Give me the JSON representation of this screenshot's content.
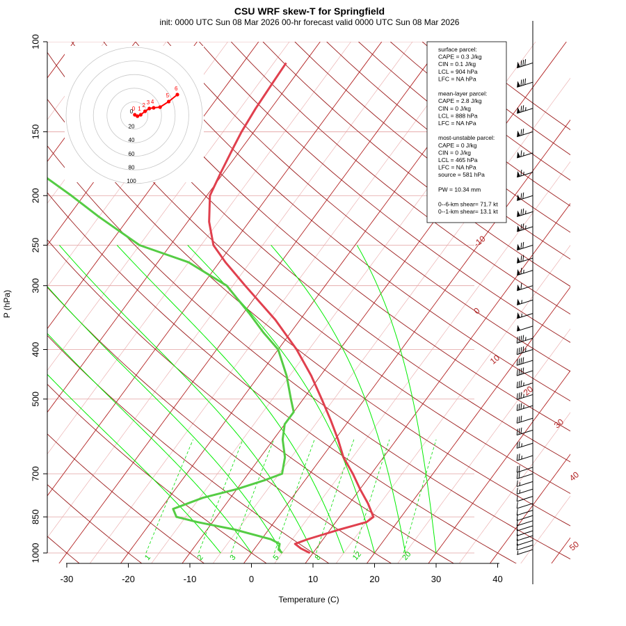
{
  "chart_data": {
    "type": "line",
    "title": "CSU WRF skew-T for Springfield",
    "subtitle": "init: 0000 UTC Sun 08 Mar 2026    00-hr forecast valid 0000 UTC Sun 08 Mar 2026",
    "xlabel": "Temperature (C)",
    "ylabel": "P (hPa)",
    "xlim": [
      -33,
      45
    ],
    "ylim": [
      1050,
      100
    ],
    "x_ticks": [
      -30,
      -20,
      -10,
      0,
      10,
      20,
      30,
      40
    ],
    "y_ticks": [
      100,
      150,
      200,
      250,
      300,
      400,
      500,
      700,
      850,
      1000
    ],
    "isotherm_labels": [
      "-10",
      "0",
      "10",
      "20",
      "30",
      "40",
      "50"
    ],
    "mixing_ratio_labels": [
      "1",
      "2",
      "3",
      "5",
      "8",
      "12",
      "20"
    ],
    "series": [
      {
        "name": "temperature",
        "color": "#e0404e",
        "points": [
          [
            1000,
            9.5
          ],
          [
            980,
            7.5
          ],
          [
            960,
            6.0
          ],
          [
            940,
            7.5
          ],
          [
            900,
            11.5
          ],
          [
            870,
            15.0
          ],
          [
            850,
            15.5
          ],
          [
            800,
            13.0
          ],
          [
            750,
            10.0
          ],
          [
            700,
            7.0
          ],
          [
            650,
            3.5
          ],
          [
            600,
            0.5
          ],
          [
            550,
            -3.0
          ],
          [
            500,
            -7.0
          ],
          [
            450,
            -11.5
          ],
          [
            400,
            -17.0
          ],
          [
            350,
            -24.0
          ],
          [
            300,
            -33.0
          ],
          [
            270,
            -39.0
          ],
          [
            250,
            -43.0
          ],
          [
            225,
            -46.5
          ],
          [
            200,
            -49.5
          ],
          [
            180,
            -50.5
          ],
          [
            160,
            -51.5
          ],
          [
            150,
            -52.0
          ],
          [
            135,
            -52.5
          ],
          [
            120,
            -52.8
          ],
          [
            110,
            -53.0
          ]
        ]
      },
      {
        "name": "dewpoint",
        "color": "#55cc44",
        "points": [
          [
            1000,
            5.0
          ],
          [
            985,
            4.0
          ],
          [
            960,
            3.5
          ],
          [
            940,
            1.5
          ],
          [
            900,
            -5.5
          ],
          [
            870,
            -12.5
          ],
          [
            850,
            -16.5
          ],
          [
            820,
            -18.0
          ],
          [
            780,
            -14.5
          ],
          [
            750,
            -10.0
          ],
          [
            720,
            -6.5
          ],
          [
            700,
            -4.5
          ],
          [
            650,
            -6.0
          ],
          [
            600,
            -8.5
          ],
          [
            560,
            -10.0
          ],
          [
            530,
            -10.0
          ],
          [
            500,
            -12.0
          ],
          [
            450,
            -15.5
          ],
          [
            400,
            -20.0
          ],
          [
            370,
            -24.5
          ],
          [
            340,
            -29.0
          ],
          [
            300,
            -36.0
          ],
          [
            270,
            -45.0
          ],
          [
            250,
            -55.0
          ],
          [
            220,
            -65.0
          ],
          [
            200,
            -72.0
          ],
          [
            185,
            -78.0
          ],
          [
            170,
            -82.0
          ]
        ]
      }
    ],
    "hodograph": {
      "rings": [
        "20",
        "40",
        "60",
        "80",
        "100"
      ],
      "center_label": "0",
      "point_labels": [
        "0",
        "1",
        "2",
        "3",
        "4",
        "5",
        "6"
      ],
      "points": [
        [
          0.5,
          0.5
        ],
        [
          3,
          -0.5
        ],
        [
          6,
          0.5
        ],
        [
          10,
          3
        ],
        [
          14,
          5
        ],
        [
          18,
          5.5
        ],
        [
          24,
          6
        ],
        [
          32,
          10
        ],
        [
          40,
          15
        ]
      ]
    },
    "wind_barbs": [
      {
        "p": 110,
        "dir": 255,
        "spd": 80
      },
      {
        "p": 120,
        "dir": 255,
        "spd": 80
      },
      {
        "p": 135,
        "dir": 255,
        "spd": 75
      },
      {
        "p": 150,
        "dir": 255,
        "spd": 70
      },
      {
        "p": 165,
        "dir": 255,
        "spd": 65
      },
      {
        "p": 180,
        "dir": 255,
        "spd": 65
      },
      {
        "p": 200,
        "dir": 255,
        "spd": 70
      },
      {
        "p": 215,
        "dir": 255,
        "spd": 75
      },
      {
        "p": 230,
        "dir": 255,
        "spd": 75
      },
      {
        "p": 250,
        "dir": 255,
        "spd": 70
      },
      {
        "p": 265,
        "dir": 255,
        "spd": 70
      },
      {
        "p": 280,
        "dir": 255,
        "spd": 65
      },
      {
        "p": 300,
        "dir": 255,
        "spd": 60
      },
      {
        "p": 320,
        "dir": 255,
        "spd": 55
      },
      {
        "p": 340,
        "dir": 255,
        "spd": 55
      },
      {
        "p": 360,
        "dir": 255,
        "spd": 50
      },
      {
        "p": 380,
        "dir": 255,
        "spd": 45
      },
      {
        "p": 400,
        "dir": 255,
        "spd": 45
      },
      {
        "p": 420,
        "dir": 255,
        "spd": 40
      },
      {
        "p": 440,
        "dir": 255,
        "spd": 40
      },
      {
        "p": 465,
        "dir": 255,
        "spd": 35
      },
      {
        "p": 490,
        "dir": 255,
        "spd": 35
      },
      {
        "p": 515,
        "dir": 255,
        "spd": 35
      },
      {
        "p": 545,
        "dir": 255,
        "spd": 30
      },
      {
        "p": 575,
        "dir": 255,
        "spd": 30
      },
      {
        "p": 610,
        "dir": 255,
        "spd": 25
      },
      {
        "p": 645,
        "dir": 255,
        "spd": 25
      },
      {
        "p": 680,
        "dir": 255,
        "spd": 20
      },
      {
        "p": 700,
        "dir": 255,
        "spd": 20
      },
      {
        "p": 725,
        "dir": 255,
        "spd": 15
      },
      {
        "p": 750,
        "dir": 255,
        "spd": 15
      },
      {
        "p": 775,
        "dir": 255,
        "spd": 10
      },
      {
        "p": 800,
        "dir": 250,
        "spd": 10
      },
      {
        "p": 825,
        "dir": 250,
        "spd": 10
      },
      {
        "p": 845,
        "dir": 245,
        "spd": 10
      },
      {
        "p": 865,
        "dir": 240,
        "spd": 10
      },
      {
        "p": 885,
        "dir": 235,
        "spd": 10
      },
      {
        "p": 905,
        "dir": 230,
        "spd": 10
      },
      {
        "p": 925,
        "dir": 225,
        "spd": 10
      },
      {
        "p": 945,
        "dir": 220,
        "spd": 10
      },
      {
        "p": 965,
        "dir": 215,
        "spd": 10
      },
      {
        "p": 985,
        "dir": 210,
        "spd": 5
      }
    ]
  },
  "info_box": {
    "lines": [
      "surface parcel:",
      "CAPE = 0.3 J/kg",
      "CIN = 0.1 J/kg",
      "LCL = 904 hPa",
      "LFC = NA hPa",
      "",
      "mean-layer parcel:",
      "CAPE = 2.8 J/kg",
      "CIN = 0 J/kg",
      "LCL = 888 hPa",
      "LFC = NA hPa",
      "",
      "most-unstable parcel:",
      "CAPE = 0 J/kg",
      "CIN = 0 J/kg",
      "LCL = 465 hPa",
      "LFC = NA hPa",
      "source = 581 hPa",
      "",
      "PW =  10.34 mm",
      "",
      "0--6-km shear= 71.7 kt",
      "0--1-km shear= 13.1 kt"
    ]
  },
  "colors": {
    "isotherm": "#b22222",
    "isotherm_light": "#e8a5a5",
    "isobar": "#e2a0a0",
    "mixing_ratio": "#00dd00",
    "moist_adiabat": "#00ee00",
    "temperature": "#e0404e",
    "dewpoint": "#55cc44",
    "hodograph": "#ff0000"
  }
}
